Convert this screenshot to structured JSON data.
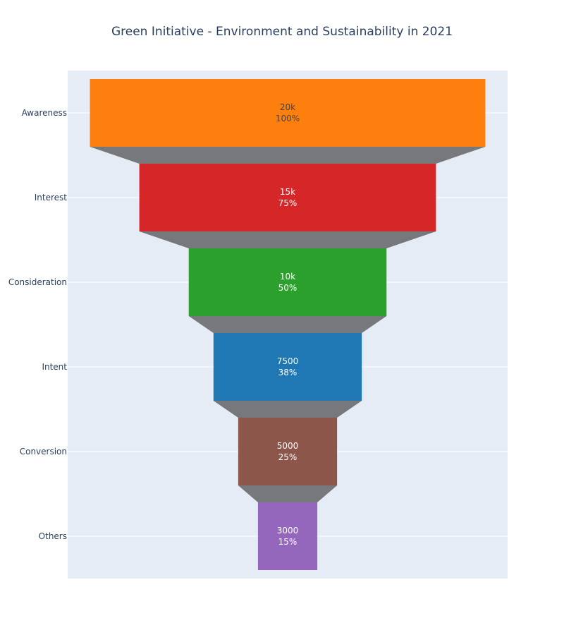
{
  "chart_data": {
    "type": "funnel",
    "title": "Green Initiative - Environment and Sustainability in 2021",
    "categories": [
      "Awareness",
      "Interest",
      "Consideration",
      "Intent",
      "Conversion",
      "Others"
    ],
    "values": [
      20000,
      15000,
      10000,
      7500,
      5000,
      3000
    ],
    "value_labels": [
      "20k",
      "15k",
      "10k",
      "7500",
      "5000",
      "3000"
    ],
    "percent_labels": [
      "100%",
      "75%",
      "50%",
      "38%",
      "25%",
      "15%"
    ],
    "colors": [
      "#ff7f0e",
      "#d62728",
      "#2ca02c",
      "#1f77b4",
      "#8c564b",
      "#9467bd"
    ],
    "label_colors": [
      "#444444",
      "#ffffff",
      "#ffffff",
      "#ffffff",
      "#ffffff",
      "#ffffff"
    ],
    "connector_color": "#76787c",
    "plot_background": "#e5ecf6",
    "grid": true
  }
}
